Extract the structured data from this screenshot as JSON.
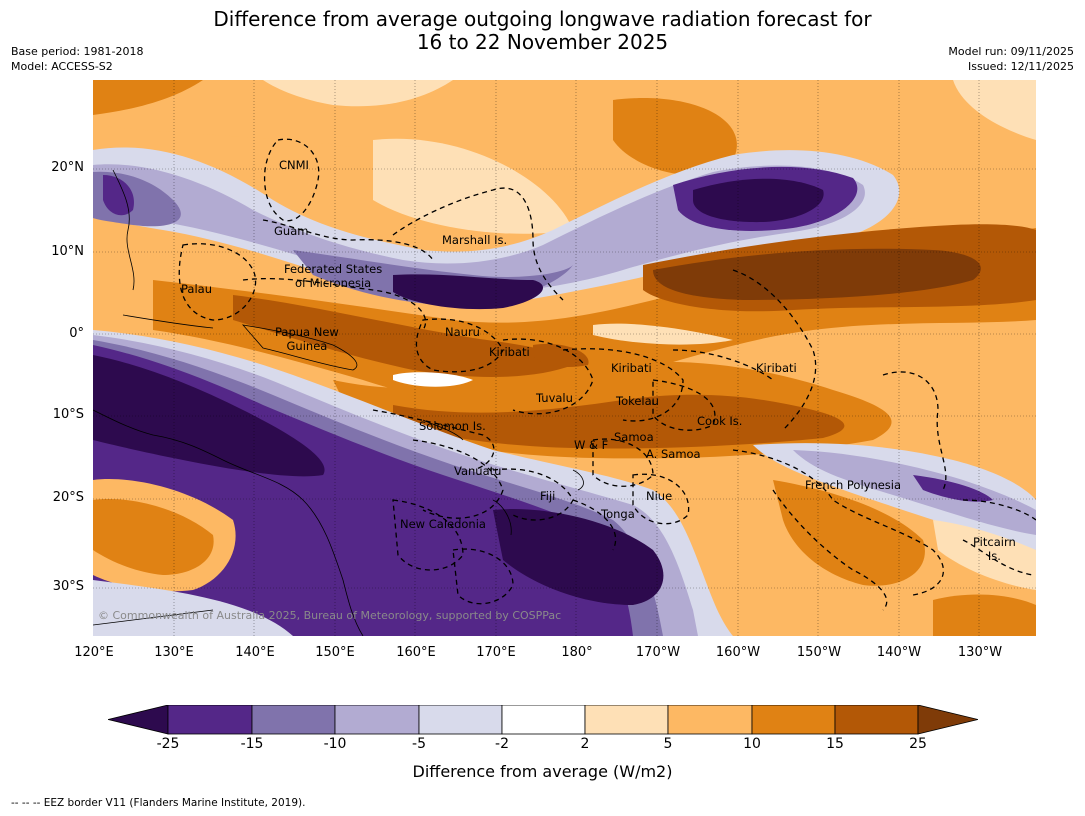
{
  "title_line1": "Difference from average outgoing longwave radiation forecast for",
  "title_line2": "16 to 22 November 2025",
  "meta": {
    "base_period": "Base period: 1981-2018",
    "model": "Model: ACCESS-S2",
    "model_run": "Model run: 09/11/2025",
    "issued": "Issued: 12/11/2025"
  },
  "copyright": "© Commonwealth of Australia 2025, Bureau of Meteorology, supported by COSPPac",
  "lat_labels": [
    "20°N",
    "10°N",
    "0°",
    "10°S",
    "20°S",
    "30°S"
  ],
  "lon_labels": [
    "120°E",
    "130°E",
    "140°E",
    "150°E",
    "160°E",
    "170°E",
    "180°",
    "170°W",
    "160°W",
    "150°W",
    "140°W",
    "130°W"
  ],
  "regions": {
    "cnmi": "CNMI",
    "guam": "Guam",
    "marshall": "Marshall Is.",
    "fsm1": "Federated States",
    "fsm2": "of Micronesia",
    "palau": "Palau",
    "png1": "Papua New",
    "png2": "Guinea",
    "nauru": "Nauru",
    "kiribati_w": "Kiribati",
    "kiribati_c": "Kiribati",
    "kiribati_e": "Kiribati",
    "tuvalu": "Tuvalu",
    "tokelau": "Tokelau",
    "cook": "Cook Is.",
    "solomon": "Solomon Is.",
    "samoa": "Samoa",
    "wf": "W & F",
    "asamoa": "A. Samoa",
    "vanuatu": "Vanuatu",
    "fiji": "Fiji",
    "niue": "Niue",
    "tonga": "Tonga",
    "newcal": "New Caledonia",
    "frpoly": "French Polynesia",
    "pitcairn1": "Pitcairn",
    "pitcairn2": "Is."
  },
  "colorbar": {
    "title": "Difference from average (W/m2)",
    "ticks": [
      "-25",
      "-15",
      "-10",
      "-5",
      "-2",
      "2",
      "5",
      "10",
      "15",
      "25"
    ],
    "colors": {
      "lt_-25": "#2d0a4e",
      "b1": "#542788",
      "b2": "#8073ac",
      "b3": "#b2abd2",
      "b4": "#d8daeb",
      "b5": "#ffffff",
      "b6": "#fee0b6",
      "b7": "#fdb863",
      "b8": "#e08214",
      "b9": "#b35806",
      "gt_25": "#7f3b08"
    }
  },
  "footnote": "--  --  -- EEZ border V11 (Flanders Marine Institute, 2019)."
}
